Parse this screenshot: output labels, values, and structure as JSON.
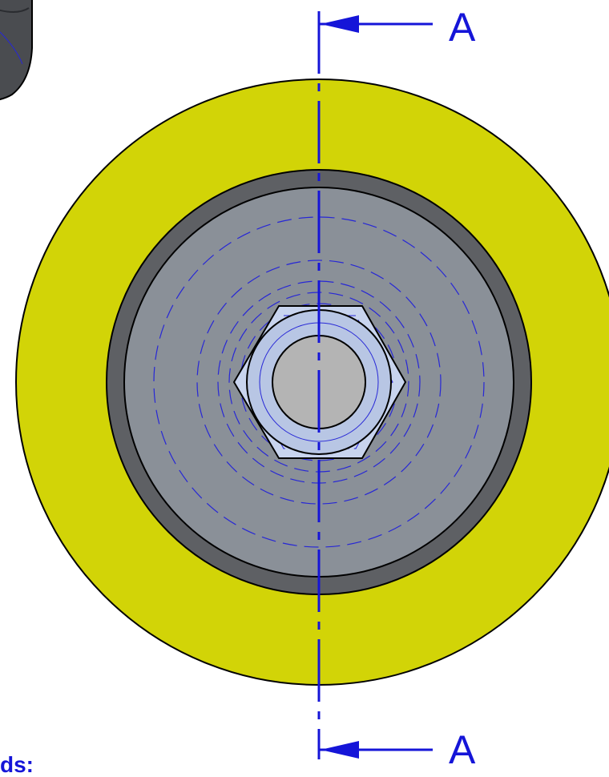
{
  "section": {
    "top_label": "A",
    "bottom_label": "A"
  },
  "caption": "ds:",
  "colors": {
    "outer_ring": "#d2d407",
    "dark_band": "#5e6064",
    "hub_face": "#8a9098",
    "hex_face": "#c8d4ee",
    "bore": "#b4b4b4",
    "centerline": "#1515d8",
    "hidden_lines": "#2727d6",
    "outline": "#000000"
  }
}
